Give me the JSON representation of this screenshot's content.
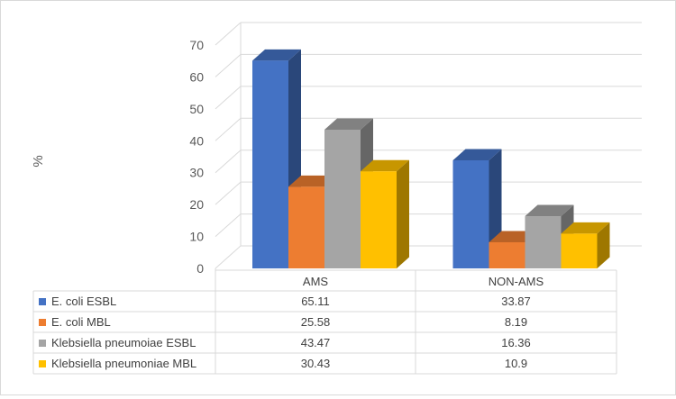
{
  "chart_data": {
    "type": "bar",
    "title": "",
    "xlabel": "",
    "ylabel": "%",
    "ylim": [
      0,
      70
    ],
    "yticks": [
      0,
      10,
      20,
      30,
      40,
      50,
      60,
      70
    ],
    "grid": true,
    "legend_placement": "data-table-below",
    "categories": [
      "AMS",
      "NON-AMS"
    ],
    "series": [
      {
        "name": "E. coli ESBL",
        "values": [
          65.11,
          33.87
        ],
        "value_labels": [
          "65.11",
          "33.87"
        ],
        "color": "#4472C4"
      },
      {
        "name": "E. coli MBL",
        "values": [
          25.58,
          8.19
        ],
        "value_labels": [
          "25.58",
          "8.19"
        ],
        "color": "#ED7D31"
      },
      {
        "name": "Klebsiella pneumoiae ESBL",
        "values": [
          43.47,
          16.36
        ],
        "value_labels": [
          "43.47",
          "16.36"
        ],
        "color": "#A5A5A5"
      },
      {
        "name": "Klebsiella pneumoniae MBL",
        "values": [
          30.43,
          10.9
        ],
        "value_labels": [
          "30.43",
          "10.9"
        ],
        "color": "#FFC000"
      }
    ]
  }
}
